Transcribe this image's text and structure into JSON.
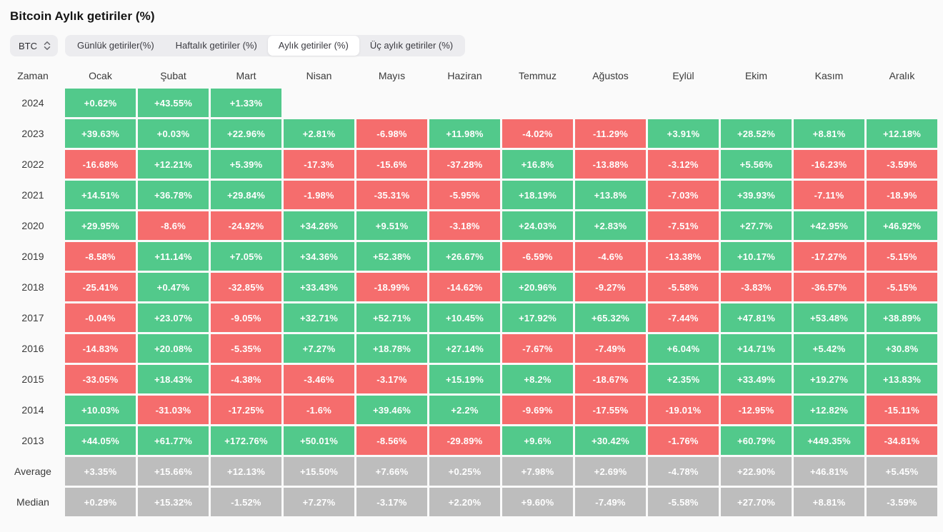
{
  "page": {
    "title": "Bitcoin Aylık getiriler (%)"
  },
  "toolbar": {
    "asset_select": {
      "value": "BTC"
    },
    "tabs": [
      {
        "label": "Günlük getiriler(%)",
        "active": false
      },
      {
        "label": "Haftalık getiriler (%)",
        "active": false
      },
      {
        "label": "Aylık getiriler (%)",
        "active": true
      },
      {
        "label": "Üç aylık getiriler (%)",
        "active": false
      }
    ]
  },
  "chart_data": {
    "type": "heatmap",
    "title": "Bitcoin Aylık getiriler (%)",
    "row_header": "Zaman",
    "columns": [
      "Ocak",
      "Şubat",
      "Mart",
      "Nisan",
      "Mayıs",
      "Haziran",
      "Temmuz",
      "Ağustos",
      "Eylül",
      "Ekim",
      "Kasım",
      "Aralık"
    ],
    "colors": {
      "positive": "#52C98B",
      "negative": "#F56D6D",
      "summary": "#BDBDBD"
    },
    "rows": [
      {
        "label": "2024",
        "kind": "year",
        "values": [
          "+0.62%",
          "+43.55%",
          "+1.33%",
          null,
          null,
          null,
          null,
          null,
          null,
          null,
          null,
          null
        ]
      },
      {
        "label": "2023",
        "kind": "year",
        "values": [
          "+39.63%",
          "+0.03%",
          "+22.96%",
          "+2.81%",
          "-6.98%",
          "+11.98%",
          "-4.02%",
          "-11.29%",
          "+3.91%",
          "+28.52%",
          "+8.81%",
          "+12.18%"
        ]
      },
      {
        "label": "2022",
        "kind": "year",
        "values": [
          "-16.68%",
          "+12.21%",
          "+5.39%",
          "-17.3%",
          "-15.6%",
          "-37.28%",
          "+16.8%",
          "-13.88%",
          "-3.12%",
          "+5.56%",
          "-16.23%",
          "-3.59%"
        ]
      },
      {
        "label": "2021",
        "kind": "year",
        "values": [
          "+14.51%",
          "+36.78%",
          "+29.84%",
          "-1.98%",
          "-35.31%",
          "-5.95%",
          "+18.19%",
          "+13.8%",
          "-7.03%",
          "+39.93%",
          "-7.11%",
          "-18.9%"
        ]
      },
      {
        "label": "2020",
        "kind": "year",
        "values": [
          "+29.95%",
          "-8.6%",
          "-24.92%",
          "+34.26%",
          "+9.51%",
          "-3.18%",
          "+24.03%",
          "+2.83%",
          "-7.51%",
          "+27.7%",
          "+42.95%",
          "+46.92%"
        ]
      },
      {
        "label": "2019",
        "kind": "year",
        "values": [
          "-8.58%",
          "+11.14%",
          "+7.05%",
          "+34.36%",
          "+52.38%",
          "+26.67%",
          "-6.59%",
          "-4.6%",
          "-13.38%",
          "+10.17%",
          "-17.27%",
          "-5.15%"
        ]
      },
      {
        "label": "2018",
        "kind": "year",
        "values": [
          "-25.41%",
          "+0.47%",
          "-32.85%",
          "+33.43%",
          "-18.99%",
          "-14.62%",
          "+20.96%",
          "-9.27%",
          "-5.58%",
          "-3.83%",
          "-36.57%",
          "-5.15%"
        ]
      },
      {
        "label": "2017",
        "kind": "year",
        "values": [
          "-0.04%",
          "+23.07%",
          "-9.05%",
          "+32.71%",
          "+52.71%",
          "+10.45%",
          "+17.92%",
          "+65.32%",
          "-7.44%",
          "+47.81%",
          "+53.48%",
          "+38.89%"
        ]
      },
      {
        "label": "2016",
        "kind": "year",
        "values": [
          "-14.83%",
          "+20.08%",
          "-5.35%",
          "+7.27%",
          "+18.78%",
          "+27.14%",
          "-7.67%",
          "-7.49%",
          "+6.04%",
          "+14.71%",
          "+5.42%",
          "+30.8%"
        ]
      },
      {
        "label": "2015",
        "kind": "year",
        "values": [
          "-33.05%",
          "+18.43%",
          "-4.38%",
          "-3.46%",
          "-3.17%",
          "+15.19%",
          "+8.2%",
          "-18.67%",
          "+2.35%",
          "+33.49%",
          "+19.27%",
          "+13.83%"
        ]
      },
      {
        "label": "2014",
        "kind": "year",
        "values": [
          "+10.03%",
          "-31.03%",
          "-17.25%",
          "-1.6%",
          "+39.46%",
          "+2.2%",
          "-9.69%",
          "-17.55%",
          "-19.01%",
          "-12.95%",
          "+12.82%",
          "-15.11%"
        ]
      },
      {
        "label": "2013",
        "kind": "year",
        "values": [
          "+44.05%",
          "+61.77%",
          "+172.76%",
          "+50.01%",
          "-8.56%",
          "-29.89%",
          "+9.6%",
          "+30.42%",
          "-1.76%",
          "+60.79%",
          "+449.35%",
          "-34.81%"
        ]
      },
      {
        "label": "Average",
        "kind": "summary",
        "values": [
          "+3.35%",
          "+15.66%",
          "+12.13%",
          "+15.50%",
          "+7.66%",
          "+0.25%",
          "+7.98%",
          "+2.69%",
          "-4.78%",
          "+22.90%",
          "+46.81%",
          "+5.45%"
        ]
      },
      {
        "label": "Median",
        "kind": "summary",
        "values": [
          "+0.29%",
          "+15.32%",
          "-1.52%",
          "+7.27%",
          "-3.17%",
          "+2.20%",
          "+9.60%",
          "-7.49%",
          "-5.58%",
          "+27.70%",
          "+8.81%",
          "-3.59%"
        ]
      }
    ]
  }
}
